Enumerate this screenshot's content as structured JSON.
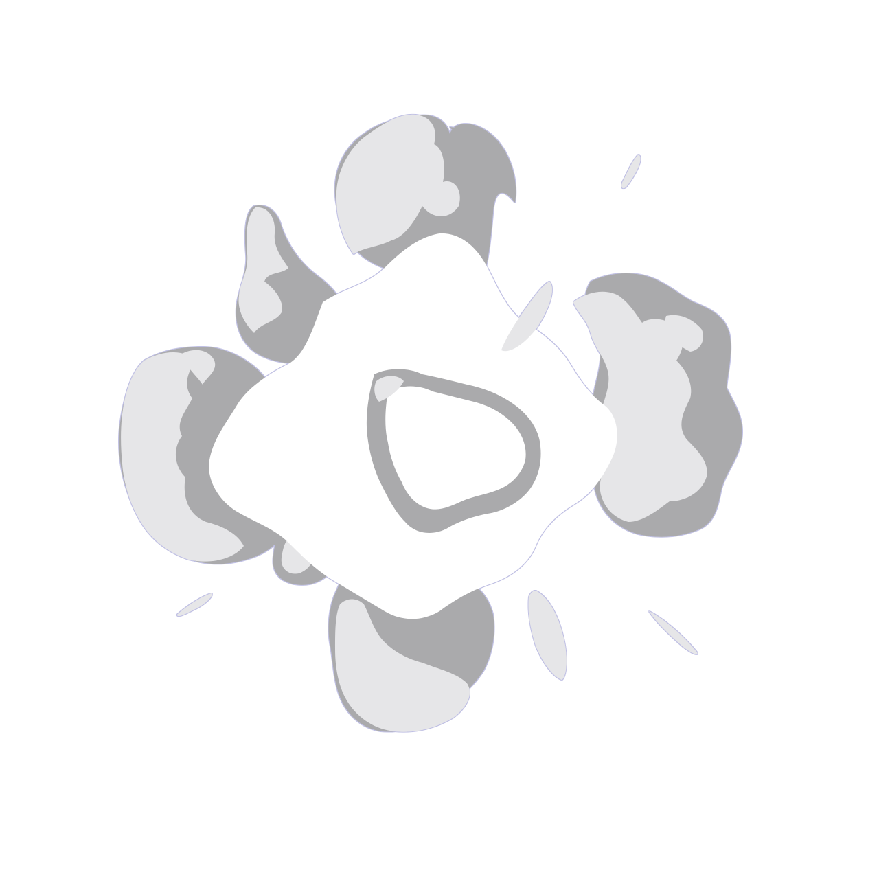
{
  "sprite": {
    "icon": "smoke-burst-icon",
    "colors": {
      "background": "#ffffff",
      "smoke_core": "#ffffff",
      "smoke_light": "#e6e6e8",
      "smoke_shadow": "#aaaaac",
      "fringe": "#4848b0"
    }
  }
}
